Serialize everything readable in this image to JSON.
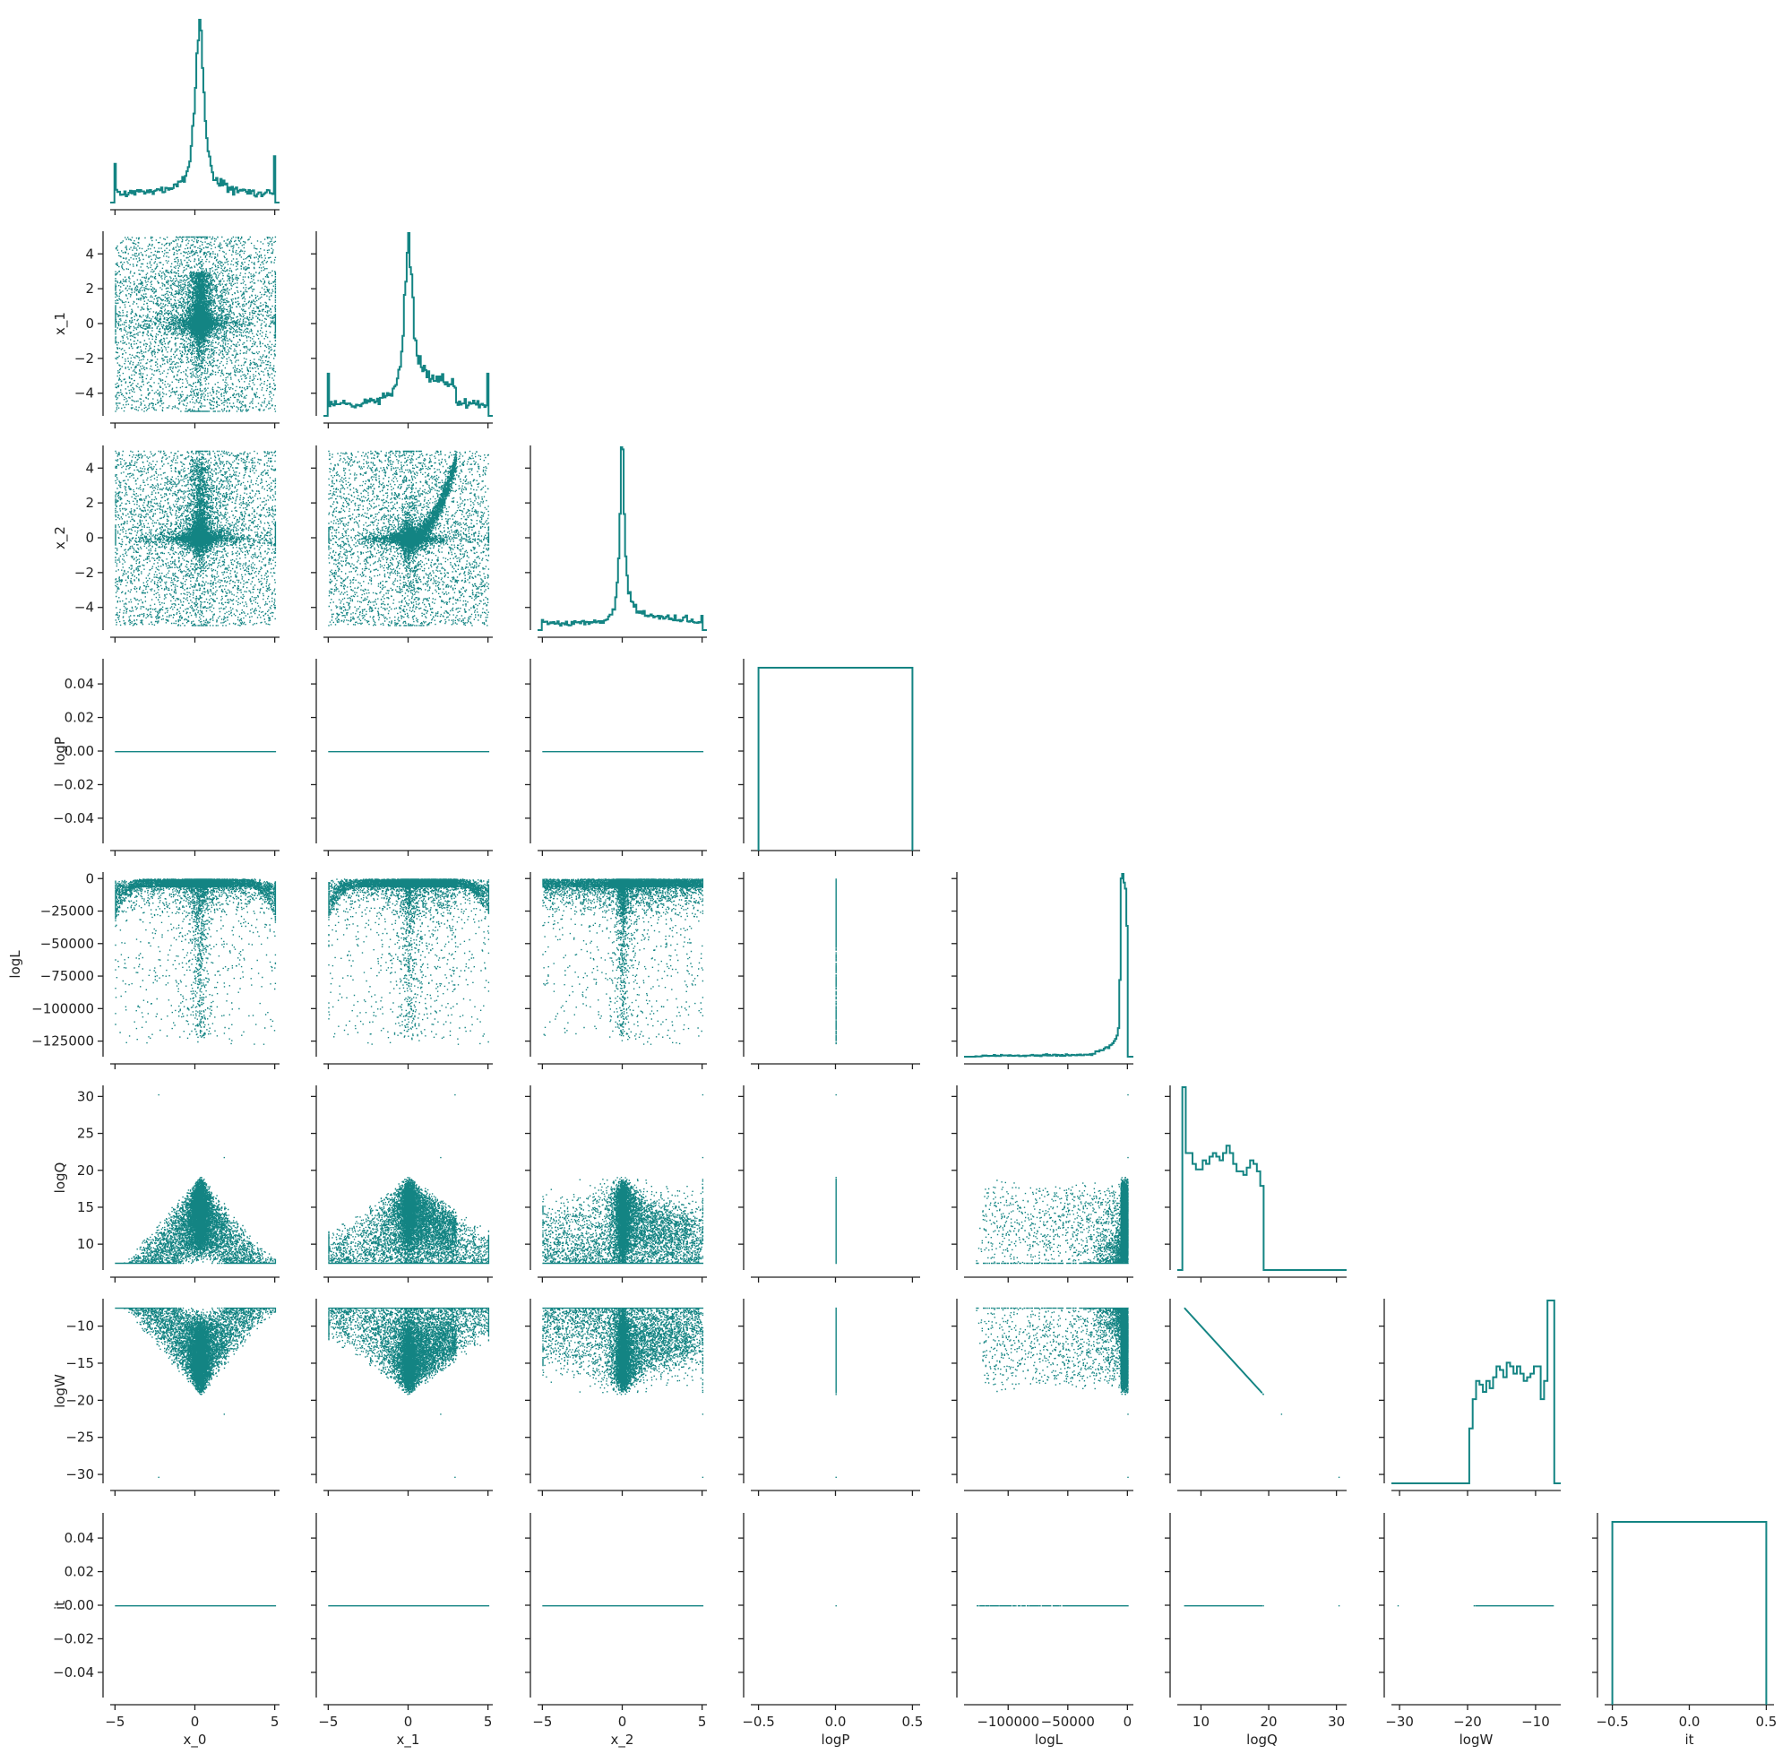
{
  "chart_data": {
    "type": "scatter",
    "layout": "pair-plot (corner), diagonal histograms, off-diagonal scatter",
    "variables": [
      "x_0",
      "x_1",
      "x_2",
      "logP",
      "logL",
      "logQ",
      "logW",
      "it"
    ],
    "color": "#138483",
    "grid": false,
    "axes": {
      "x_0": {
        "label": "x_0",
        "range": [
          -5.3,
          5.3
        ],
        "ticks": [
          -5,
          0,
          5
        ]
      },
      "x_1": {
        "label": "x_1",
        "range": [
          -5.3,
          5.3
        ],
        "ticks": [
          -4,
          -2,
          0,
          2,
          4
        ],
        "xticks": [
          -5,
          0,
          5
        ]
      },
      "x_2": {
        "label": "x_2",
        "range": [
          -5.3,
          5.3
        ],
        "ticks": [
          -4,
          -2,
          0,
          2,
          4
        ],
        "xticks": [
          -5,
          0,
          5
        ]
      },
      "logP": {
        "label": "logP",
        "range": [
          -0.055,
          0.055
        ],
        "ticks": [
          -0.04,
          -0.02,
          0.0,
          0.02,
          0.04
        ],
        "xrange": [
          -0.55,
          0.55
        ],
        "xticks": [
          -0.5,
          0.0,
          0.5
        ]
      },
      "logL": {
        "label": "logL",
        "range": [
          -137000,
          5000
        ],
        "ticks": [
          -125000,
          -100000,
          -75000,
          -50000,
          -25000,
          0
        ],
        "xticks": [
          -100000,
          -50000,
          0
        ]
      },
      "logQ": {
        "label": "logQ",
        "range": [
          6.5,
          31.5
        ],
        "ticks": [
          10,
          15,
          20,
          25,
          30
        ],
        "xticks": [
          10,
          20,
          30
        ]
      },
      "logW": {
        "label": "logW",
        "range": [
          -31.2,
          -6.3
        ],
        "ticks": [
          -30,
          -25,
          -20,
          -15,
          -10
        ],
        "xticks": [
          -30,
          -20,
          -10
        ]
      },
      "it": {
        "label": "it",
        "range": [
          -0.055,
          0.055
        ],
        "ticks": [
          -0.04,
          -0.02,
          0.0,
          0.02,
          0.04
        ],
        "xrange": [
          -0.55,
          0.55
        ],
        "xticks": [
          -0.5,
          0.0,
          0.5
        ]
      }
    },
    "tick_labels": {
      "x_0": [
        "−5",
        "0",
        "5"
      ],
      "x_1": [
        "−5",
        "0",
        "5"
      ],
      "x_2": [
        "−5",
        "0",
        "5"
      ],
      "logP": [
        "−0.5",
        "0.0",
        "0.5"
      ],
      "logL": [
        "−100000",
        "−50000",
        "0"
      ],
      "logQ": [
        "10",
        "20",
        "30"
      ],
      "logW": [
        "−30",
        "−20",
        "−10"
      ],
      "it": [
        "−0.5",
        "0.0",
        "0.5"
      ],
      "y_x_1": [
        "−4",
        "−2",
        "0",
        "2",
        "4"
      ],
      "y_x_2": [
        "−4",
        "−2",
        "0",
        "2",
        "4"
      ],
      "y_logP": [
        "−0.04",
        "−0.02",
        "0.00",
        "0.02",
        "0.04"
      ],
      "y_logL": [
        "−125000",
        "−100000",
        "−75000",
        "−50000",
        "−25000",
        "0"
      ],
      "y_logQ": [
        "10",
        "15",
        "20",
        "25",
        "30"
      ],
      "y_logW": [
        "−30",
        "−25",
        "−20",
        "−15",
        "−10"
      ],
      "y_it": [
        "−0.04",
        "−0.02",
        "0.00",
        "0.02",
        "0.04"
      ]
    },
    "histograms": {
      "x_0": {
        "type": "step",
        "centre": 0.3,
        "shape": "sharp peak near 0 with heavy tails"
      },
      "x_1": {
        "type": "step",
        "centre": 0.0,
        "shape": "sharp peak near 0 with heavy tails"
      },
      "x_2": {
        "type": "step",
        "centre": 0.0,
        "shape": "very sharp peak at 0"
      },
      "logP": {
        "type": "step",
        "shape": "single bin",
        "edges": [
          -0.5,
          0.5
        ]
      },
      "logL": {
        "type": "step",
        "shape": "spike at 0"
      },
      "logQ": {
        "type": "step",
        "x": [
          7.5,
          8.0,
          8.5,
          9.0,
          9.5,
          10.0,
          10.5,
          11.0,
          11.5,
          12.0,
          12.5,
          13.0,
          13.5,
          14.0,
          14.5,
          15.0,
          15.5,
          16.0,
          16.5,
          17.0,
          17.5,
          18.0,
          18.5,
          19.0,
          19.5
        ],
        "relative_height": [
          1.0,
          0.64,
          0.64,
          0.58,
          0.55,
          0.55,
          0.6,
          0.58,
          0.62,
          0.64,
          0.62,
          0.6,
          0.64,
          0.68,
          0.64,
          0.58,
          0.54,
          0.54,
          0.52,
          0.56,
          0.6,
          0.58,
          0.54,
          0.46,
          0.0
        ]
      },
      "logW": {
        "type": "step",
        "x": [
          -19.5,
          -19.0,
          -18.5,
          -18.0,
          -17.5,
          -17.0,
          -16.5,
          -16.0,
          -15.5,
          -15.0,
          -14.5,
          -14.0,
          -13.5,
          -13.0,
          -12.5,
          -12.0,
          -11.5,
          -11.0,
          -10.5,
          -10.0,
          -9.5,
          -9.0,
          -8.5,
          -8.0,
          -7.5
        ],
        "relative_height": [
          0.3,
          0.46,
          0.56,
          0.54,
          0.5,
          0.56,
          0.52,
          0.58,
          0.64,
          0.62,
          0.58,
          0.66,
          0.64,
          0.6,
          0.64,
          0.6,
          0.56,
          0.58,
          0.6,
          0.64,
          0.64,
          0.46,
          0.56,
          1.0,
          1.0
        ]
      },
      "it": {
        "type": "step",
        "shape": "single bin",
        "edges": [
          -0.5,
          0.5
        ]
      }
    }
  }
}
